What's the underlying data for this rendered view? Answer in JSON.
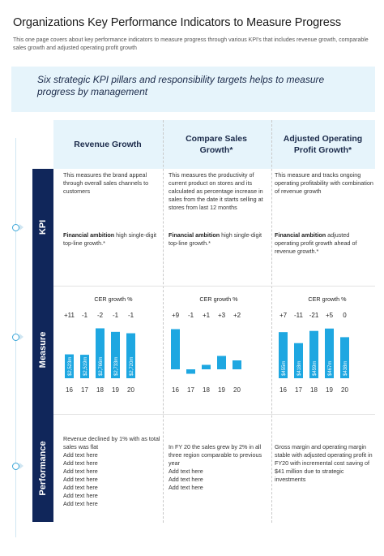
{
  "title": "Organizations Key Performance Indicators to Measure Progress",
  "subtitle": "This one page covers about key performance indicators to measure progress through various KPI's that includes revenue growth, comparable sales growth and adjusted operating profit growth",
  "banner": "Six strategic KPI pillars and responsibility targets helps to measure progress by management",
  "columns": [
    "Revenue Growth",
    "Compare Sales Growth*",
    "Adjusted Operating Profit Growth*"
  ],
  "rows": [
    "KPI",
    "Measure",
    "Performance"
  ],
  "kpi": [
    {
      "desc": "This measures the brand appeal through overall sales channels to customers",
      "ambition_label": "Financial ambition",
      "ambition": " high single-digit top-line growth.*"
    },
    {
      "desc": "This measures the productivity of current product on stores and its calculated as percentage increase in sales from the date it starts selling at stores from last 12 months",
      "ambition_label": "Financial ambition",
      "ambition": " high single-digit top-line growth.*"
    },
    {
      "desc": "This measure and tracks ongoing operating profitability with combination of revenue growth",
      "ambition_label": "Financial ambition",
      "ambition": " adjusted operating profit growth ahead of revenue growth.*"
    }
  ],
  "performance": [
    "Revenue declined by 1% with as total sales was flat\nAdd text here\nAdd text here\nAdd text here\nAdd text here\nAdd text here\nAdd text here\nAdd text here",
    "In FY 20 the sales grew by 2% in all three region comparable to previous year\nAdd text here\nAdd text here\nAdd text here",
    "Gross margin and operating margin stable with adjusted operating profit in FY20 with incremental cost saving of $41 million due to strategic investments"
  ],
  "colors": {
    "navy": "#10265a",
    "bar": "#1ea7e1",
    "light": "#e6f4fb",
    "accent": "#3aa6d8"
  },
  "chart_data": [
    {
      "type": "bar",
      "title": "CER growth %",
      "categories": [
        "16",
        "17",
        "18",
        "19",
        "20"
      ],
      "growth_labels": [
        "+11",
        "-1",
        "-2",
        "-1",
        "-1"
      ],
      "values": [
        2.523,
        2.519,
        2.766,
        2.733,
        2.72
      ],
      "bar_labels": [
        "$2,523m",
        "$2,519m",
        "$2,766m",
        "$2,733m",
        "$2,720m"
      ],
      "ylim": [
        2.3,
        2.8
      ]
    },
    {
      "type": "bar",
      "title": "CER growth %",
      "categories": [
        "16",
        "17",
        "18",
        "19",
        "20"
      ],
      "growth_labels": [
        "+9",
        "-1",
        "+1",
        "+3",
        "+2"
      ],
      "values": [
        9,
        -1,
        1,
        3,
        2
      ],
      "bar_labels": [],
      "ylim": [
        -2,
        10
      ]
    },
    {
      "type": "bar",
      "title": "CER growth %",
      "categories": [
        "16",
        "17",
        "18",
        "19",
        "20"
      ],
      "growth_labels": [
        "+7",
        "-11",
        "-21",
        "+5",
        "0"
      ],
      "values": [
        455,
        418,
        459,
        467,
        438
      ],
      "bar_labels": [
        "$455m",
        "$418m",
        "$459m",
        "$467m",
        "$438m"
      ],
      "ylim": [
        300,
        480
      ]
    }
  ]
}
